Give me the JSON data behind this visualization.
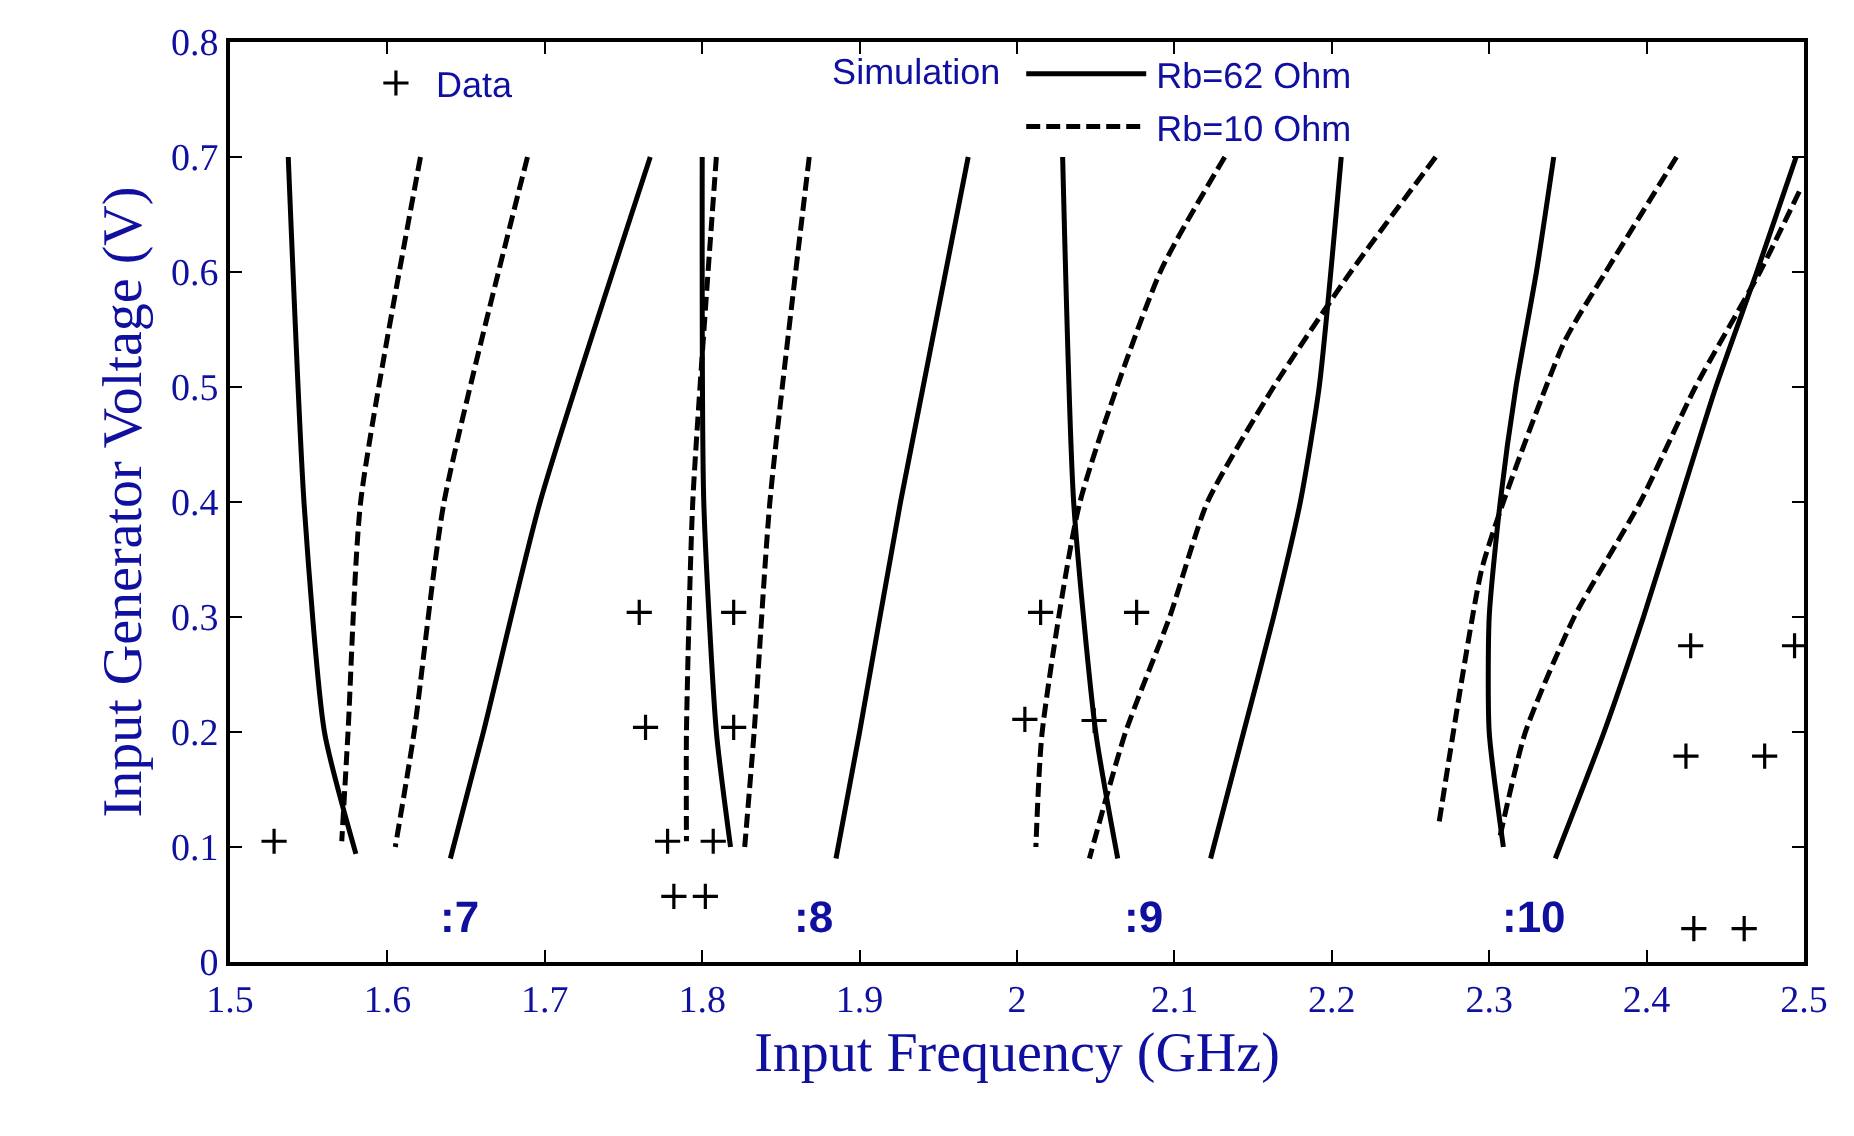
{
  "chart_data": {
    "type": "line",
    "xlabel": "Input Frequency (GHz)",
    "ylabel": "Input Generator Voltage (V)",
    "xlim": [
      1.5,
      2.5
    ],
    "xticks": [
      1.5,
      1.6,
      1.7,
      1.8,
      1.9,
      2,
      2.1,
      2.2,
      2.3,
      2.4,
      2.5
    ],
    "ylim": [
      0,
      0.8
    ],
    "yticks": [
      0,
      0.1,
      0.2,
      0.3,
      0.4,
      0.5,
      0.6,
      0.7,
      0.8
    ],
    "legend": "top",
    "marker": "none",
    "series": [
      {
        "type": "scatter",
        "name": "Data",
        "marker": "cross",
        "color": "#000000",
        "x": [
          1.528,
          1.76,
          1.764,
          1.778,
          1.807,
          1.782,
          1.802,
          1.82,
          1.82,
          2.015,
          2.076,
          2.005,
          2.049,
          2.428,
          2.494,
          2.425,
          2.475,
          2.43,
          2.462
        ],
        "values": [
          0.105,
          0.304,
          0.204,
          0.105,
          0.105,
          0.057,
          0.057,
          0.304,
          0.204,
          0.304,
          0.304,
          0.211,
          0.21,
          0.275,
          0.275,
          0.179,
          0.179,
          0.029,
          0.029
        ]
      },
      {
        "name": "Rb=62 Ohm",
        "line_style": "solid",
        "color": "#000000",
        "x": [
          1.537,
          1.547,
          1.56,
          1.58
        ],
        "values": [
          0.7,
          0.4,
          0.2,
          0.094
        ]
      },
      {
        "name": "Rb=10 Ohm",
        "line_style": "dashed",
        "color": "#000000",
        "x": [
          1.621,
          1.583,
          1.575,
          1.571
        ],
        "values": [
          0.7,
          0.4,
          0.2,
          0.105
        ]
      },
      {
        "line_style": "dashed",
        "color": "#000000",
        "x": [
          1.689,
          1.636,
          1.617,
          1.605
        ],
        "values": [
          0.7,
          0.4,
          0.2,
          0.1
        ]
      },
      {
        "line_style": "solid",
        "color": "#000000",
        "x": [
          1.767,
          1.697,
          1.661,
          1.64
        ],
        "values": [
          0.7,
          0.4,
          0.2,
          0.09
        ]
      },
      {
        "line_style": "solid",
        "color": "#000000",
        "x": [
          1.8,
          1.801,
          1.809,
          1.818
        ],
        "values": [
          0.7,
          0.4,
          0.2,
          0.1
        ]
      },
      {
        "line_style": "dashed",
        "color": "#000000",
        "x": [
          1.809,
          1.794,
          1.79,
          1.79
        ],
        "values": [
          0.7,
          0.4,
          0.2,
          0.105
        ]
      },
      {
        "line_style": "dashed",
        "color": "#000000",
        "x": [
          1.868,
          1.843,
          1.833,
          1.827
        ],
        "values": [
          0.7,
          0.4,
          0.2,
          0.1
        ]
      },
      {
        "line_style": "solid",
        "color": "#000000",
        "x": [
          1.969,
          1.926,
          1.9,
          1.885
        ],
        "values": [
          0.7,
          0.4,
          0.2,
          0.09
        ]
      },
      {
        "line_style": "solid",
        "color": "#000000",
        "x": [
          2.029,
          2.036,
          2.05,
          2.064
        ],
        "values": [
          0.7,
          0.4,
          0.2,
          0.09
        ]
      },
      {
        "line_style": "dashed",
        "color": "#000000",
        "x": [
          2.132,
          2.091,
          2.04,
          2.016,
          2.012
        ],
        "values": [
          0.7,
          0.6,
          0.4,
          0.2,
          0.1
        ]
      },
      {
        "line_style": "dashed",
        "color": "#000000",
        "x": [
          2.266,
          2.212,
          2.163,
          2.121,
          2.097,
          2.069,
          2.046
        ],
        "values": [
          0.7,
          0.6,
          0.5,
          0.4,
          0.3,
          0.2,
          0.09
        ]
      },
      {
        "line_style": "solid",
        "color": "#000000",
        "x": [
          2.206,
          2.192,
          2.18,
          2.163,
          2.144,
          2.123
        ],
        "values": [
          0.7,
          0.5,
          0.4,
          0.3,
          0.2,
          0.09
        ]
      },
      {
        "line_style": "dashed",
        "color": "#000000",
        "x": [
          2.419,
          2.374,
          2.348,
          2.309,
          2.295,
          2.268
        ],
        "values": [
          0.7,
          0.6,
          0.54,
          0.4,
          0.34,
          0.12
        ]
      },
      {
        "line_style": "solid",
        "color": "#000000",
        "x": [
          2.341,
          2.33,
          2.317,
          2.307,
          2.3,
          2.3,
          2.309
        ],
        "values": [
          0.7,
          0.6,
          0.5,
          0.4,
          0.3,
          0.2,
          0.1
        ]
      },
      {
        "line_style": "dashed",
        "color": "#000000",
        "x": [
          2.497,
          2.472,
          2.431,
          2.396,
          2.354,
          2.323,
          2.307
        ],
        "values": [
          0.67,
          0.6,
          0.5,
          0.4,
          0.3,
          0.2,
          0.11
        ]
      },
      {
        "line_style": "solid",
        "color": "#000000",
        "x": [
          2.495,
          2.47,
          2.444,
          2.421,
          2.398,
          2.373,
          2.342
        ],
        "values": [
          0.7,
          0.6,
          0.5,
          0.4,
          0.3,
          0.2,
          0.09
        ]
      }
    ],
    "annotations": [
      "Simulation",
      ":7",
      ":8",
      ":9",
      ":10"
    ]
  }
}
